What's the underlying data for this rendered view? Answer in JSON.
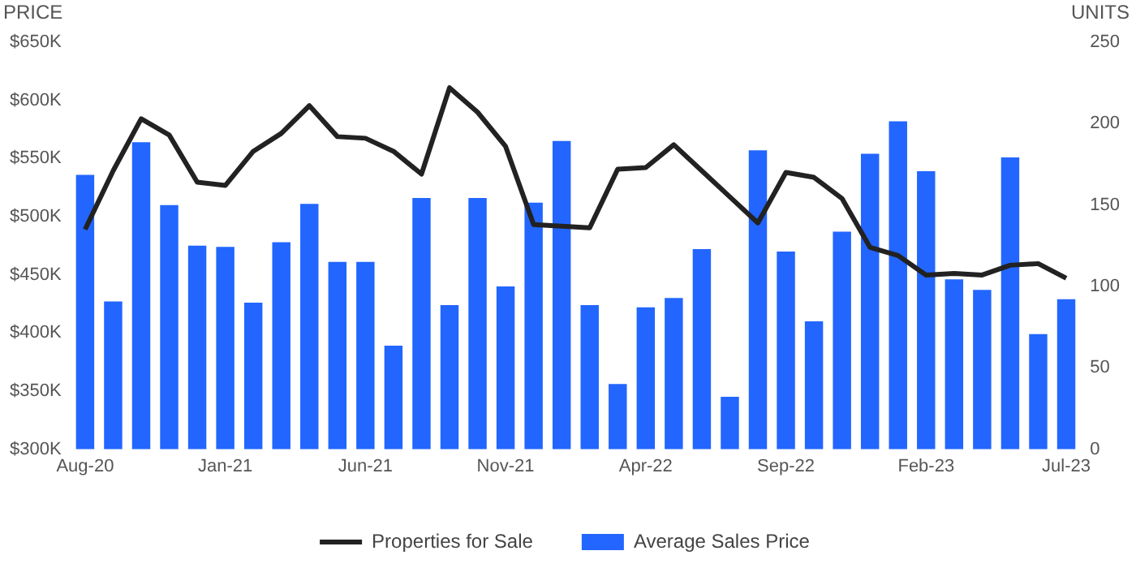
{
  "chart_data": {
    "type": "bar",
    "ylabel": "PRICE",
    "y2label": "UNITS",
    "categories": [
      "Aug-20",
      null,
      null,
      null,
      null,
      "Jan-21",
      null,
      null,
      null,
      null,
      "Jun-21",
      null,
      null,
      null,
      null,
      "Nov-21",
      null,
      null,
      null,
      null,
      "Apr-22",
      null,
      null,
      null,
      null,
      "Sep-22",
      null,
      null,
      null,
      null,
      "Feb-23",
      null,
      null,
      null,
      null,
      "Jul-23"
    ],
    "series": [
      {
        "name": "Properties for Sale",
        "type": "line",
        "axis": "y2",
        "color": "#222222",
        "values": [
          135,
          171,
          203,
          193,
          164,
          162,
          183,
          194,
          211,
          192,
          191,
          183,
          169,
          222,
          207,
          186,
          138,
          137,
          136,
          172,
          173,
          187,
          171,
          155,
          139,
          170,
          167,
          154,
          124,
          119,
          107,
          108,
          107,
          113,
          114,
          105
        ]
      },
      {
        "name": "Average Sales Price",
        "color": "#2266ff",
        "values": [
          536000,
          427000,
          564000,
          510000,
          475000,
          474000,
          426000,
          478000,
          511000,
          461000,
          461000,
          389000,
          516000,
          424000,
          516000,
          440000,
          512000,
          565000,
          424000,
          356000,
          422000,
          430000,
          472000,
          345000,
          557000,
          470000,
          410000,
          487000,
          554000,
          582000,
          539000,
          446000,
          437000,
          551000,
          399000,
          429000
        ]
      }
    ],
    "ylim": [
      300000,
      650000
    ],
    "yticks": [
      {
        "value": 300000,
        "label": "$300K"
      },
      {
        "value": 350000,
        "label": "$350K"
      },
      {
        "value": 400000,
        "label": "$400K"
      },
      {
        "value": 450000,
        "label": "$450K"
      },
      {
        "value": 500000,
        "label": "$500K"
      },
      {
        "value": 550000,
        "label": "$550K"
      },
      {
        "value": 600000,
        "label": "$600K"
      },
      {
        "value": 650000,
        "label": "$650K"
      }
    ],
    "y2lim": [
      0,
      250
    ],
    "y2ticks": [
      0,
      50,
      100,
      150,
      200,
      250
    ],
    "grid": false,
    "legend": "bottom"
  }
}
